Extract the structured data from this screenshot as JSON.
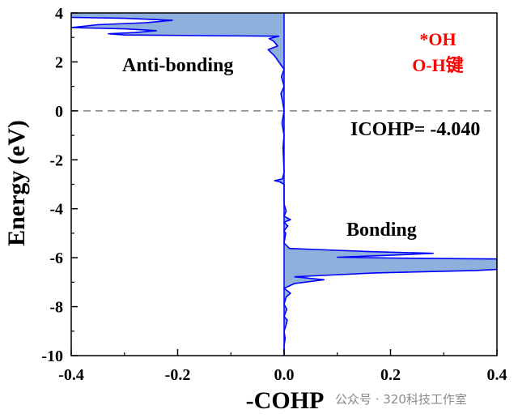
{
  "chart_data": {
    "type": "area",
    "title": "",
    "xlabel": "-COHP",
    "ylabel": "Energy (eV)",
    "xlim": [
      -0.4,
      0.4
    ],
    "ylim": [
      -10,
      4
    ],
    "x_ticks": [
      "-0.4",
      "-0.2",
      "0.0",
      "0.2",
      "0.4"
    ],
    "y_ticks": [
      "-10",
      "-8",
      "-6",
      "-4",
      "-2",
      "0",
      "2",
      "4"
    ],
    "fermi_level": 0,
    "grid": false,
    "fill_color": "#8fb0dd",
    "line_color": "#0000ff",
    "reference_line_color": "#808080",
    "annotations": {
      "anti_bonding": "Anti-bonding",
      "bonding": "Bonding",
      "icohp": "ICOHP= -4.040",
      "species": "*OH",
      "bond": "O-H键"
    },
    "series": [
      {
        "points": [
          [
            0.0,
            -10
          ],
          [
            0.0,
            -9.6
          ],
          [
            0.002,
            -9.3
          ],
          [
            0.0,
            -9.0
          ],
          [
            0.003,
            -8.8
          ],
          [
            0.006,
            -8.55
          ],
          [
            0.0,
            -8.4
          ],
          [
            0.005,
            -8.1
          ],
          [
            0.0,
            -7.9
          ],
          [
            0.004,
            -7.6
          ],
          [
            0.012,
            -7.45
          ],
          [
            0.0,
            -7.25
          ],
          [
            0.02,
            -7.05
          ],
          [
            0.075,
            -6.9
          ],
          [
            0.02,
            -6.78
          ],
          [
            0.17,
            -6.62
          ],
          [
            0.36,
            -6.52
          ],
          [
            0.4,
            -6.48
          ],
          [
            0.4,
            -6.05
          ],
          [
            0.22,
            -6.02
          ],
          [
            0.1,
            -5.98
          ],
          [
            0.2,
            -5.9
          ],
          [
            0.28,
            -5.82
          ],
          [
            0.16,
            -5.75
          ],
          [
            0.01,
            -5.62
          ],
          [
            0.0,
            -5.4
          ],
          [
            0.003,
            -5.0
          ],
          [
            0.0,
            -4.9
          ],
          [
            0.007,
            -4.7
          ],
          [
            0.0,
            -4.55
          ],
          [
            0.012,
            -4.45
          ],
          [
            0.0,
            -4.3
          ],
          [
            0.004,
            -4.1
          ],
          [
            0.0,
            -3.8
          ],
          [
            0.0,
            -3.0
          ],
          [
            -0.008,
            -2.9
          ],
          [
            -0.018,
            -2.85
          ],
          [
            -0.003,
            -2.78
          ],
          [
            0.0,
            -2.5
          ],
          [
            -0.002,
            -1.5
          ],
          [
            0.0,
            -1.0
          ],
          [
            -0.004,
            -0.5
          ],
          [
            0.0,
            0.0
          ],
          [
            -0.003,
            0.4
          ],
          [
            -0.006,
            0.7
          ],
          [
            0.0,
            1.0
          ],
          [
            -0.005,
            1.4
          ],
          [
            0.0,
            1.7
          ],
          [
            -0.01,
            2.0
          ],
          [
            -0.018,
            2.25
          ],
          [
            -0.03,
            2.5
          ],
          [
            -0.012,
            2.65
          ],
          [
            -0.02,
            2.85
          ],
          [
            -0.028,
            2.95
          ],
          [
            -0.01,
            3.05
          ],
          [
            -0.3,
            3.1
          ],
          [
            -0.33,
            3.15
          ],
          [
            -0.28,
            3.2
          ],
          [
            -0.24,
            3.28
          ],
          [
            -0.3,
            3.35
          ],
          [
            -0.4,
            3.4
          ],
          [
            -0.35,
            3.52
          ],
          [
            -0.26,
            3.6
          ],
          [
            -0.21,
            3.7
          ],
          [
            -0.3,
            3.78
          ],
          [
            -0.4,
            3.82
          ],
          [
            -0.4,
            4.0
          ]
        ]
      }
    ]
  },
  "watermark": "公众号 · 320科技工作室"
}
